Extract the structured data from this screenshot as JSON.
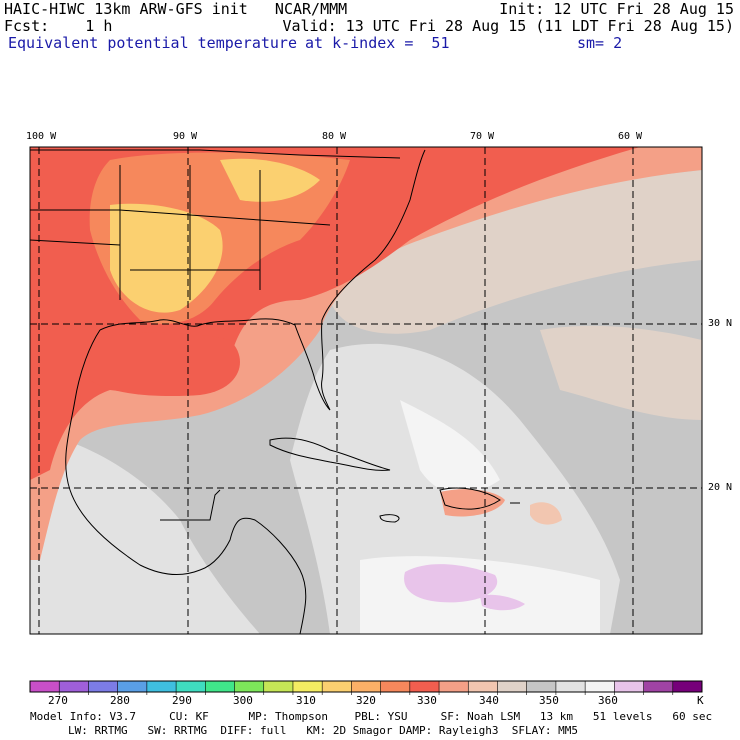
{
  "header": {
    "line1_left": "HAIC-HIWC 13km ARW-GFS init   NCAR/MMM",
    "line1_right": "Init: 12 UTC Fri 28 Aug 15",
    "line2_left": "Fcst:    1 h",
    "line2_right": "Valid: 13 UTC Fri 28 Aug 15 (11 LDT Fri 28 Aug 15)",
    "field_name": "Equivalent potential temperature",
    "level": "at k-index =  51",
    "smoothing": "sm= 2"
  },
  "map": {
    "projection": "regional",
    "longitude_labels": [
      "100 W",
      "90 W",
      "80 W",
      "70 W",
      "60 W"
    ],
    "latitude_labels": [
      "30 N",
      "20 N"
    ],
    "field_units": "K"
  },
  "colorbar": {
    "colors": [
      "#c84fc8",
      "#9f5fd9",
      "#7c7ce6",
      "#5a9fe6",
      "#3fbfe0",
      "#3fdcc0",
      "#40e68a",
      "#7de65a",
      "#c6e656",
      "#f4ec62",
      "#fbd070",
      "#fbb067",
      "#f6885c",
      "#f15e4f",
      "#f4a087",
      "#f2c6b0",
      "#e0d2c8",
      "#c6c6c6",
      "#e2e2e2",
      "#f4f4f4",
      "#e8c4ea",
      "#a043a4",
      "#76007a"
    ],
    "tick_labels": [
      "270",
      "280",
      "290",
      "300",
      "310",
      "320",
      "330",
      "340",
      "350",
      "360",
      "K"
    ]
  },
  "footer": {
    "line1": "Model Info: V3.7     CU: KF      MP: Thompson    PBL: YSU     SF: Noah LSM   13 km   51 levels   60 sec",
    "line2": "LW: RRTMG   SW: RRTMG  DIFF: full   KM: 2D Smagor DAMP: Rayleigh3  SFLAY: MM5"
  }
}
